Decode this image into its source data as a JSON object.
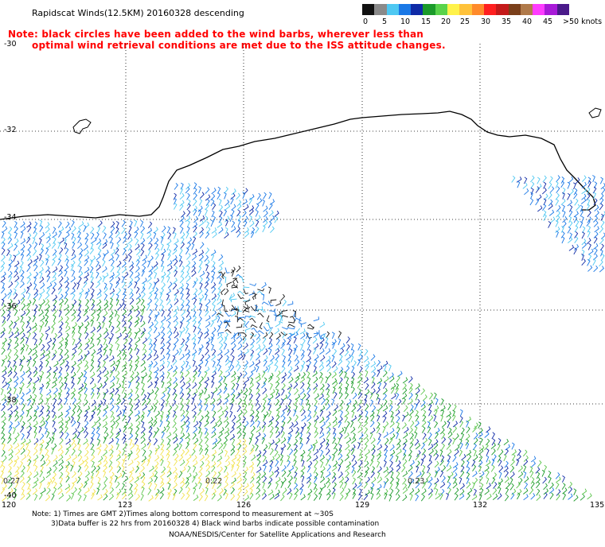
{
  "title": "Rapidscat Winds(12.5KM) 20160328 descending",
  "note_line1": "Note: black circles have been added to the wind barbs, wherever less than",
  "note_line2": "optimal wind retrieval conditions are met due to the ISS attitude changes.",
  "legend": {
    "labels": [
      "0",
      "5",
      "10",
      "15",
      "20",
      "25",
      "30",
      "35",
      "40",
      "45",
      ">50 knots"
    ],
    "colors": [
      "#111111",
      "#8a8a8a",
      "#4ec8f2",
      "#1a78e6",
      "#0f2aa6",
      "#1b9a2a",
      "#59d34a",
      "#fff24a",
      "#ffc23a",
      "#ff8a2a",
      "#ff1f1f",
      "#c41a1a",
      "#7a3f1a",
      "#b07a4a",
      "#ff3cff",
      "#a81ad8",
      "#4a1a8a"
    ]
  },
  "lon_labels": [
    "120",
    "123",
    "126",
    "129",
    "132",
    "135"
  ],
  "lat_labels": [
    "-30",
    "-32",
    "-34",
    "-36",
    "-38",
    "-40"
  ],
  "time_labels": [
    "0:27",
    "0:22",
    "0:23"
  ],
  "footer_line1": "Note: 1) Times are GMT 2)Times along bottom correspond to measurement at ~30S",
  "footer_line2": "3)Data buffer is 22 hrs from 20160328 4) Black wind barbs indicate possible contamination",
  "footer_line3": "NOAA/NESDIS/Center for Satellite Applications and Research"
}
